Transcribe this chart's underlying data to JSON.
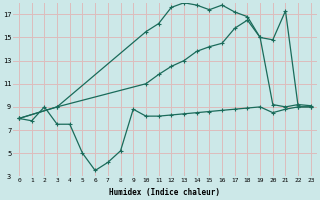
{
  "xlabel": "Humidex (Indice chaleur)",
  "bg_color": "#cce8e8",
  "grid_color": "#ddbcbc",
  "line_color": "#1a6b5a",
  "xlim": [
    -0.5,
    23.5
  ],
  "ylim": [
    3,
    18
  ],
  "yticks": [
    3,
    5,
    7,
    9,
    11,
    13,
    15,
    17
  ],
  "xticks": [
    0,
    1,
    2,
    3,
    4,
    5,
    6,
    7,
    8,
    9,
    10,
    11,
    12,
    13,
    14,
    15,
    16,
    17,
    18,
    19,
    20,
    21,
    22,
    23
  ],
  "line1_x": [
    0,
    1,
    2,
    3,
    4,
    5,
    6,
    7,
    8,
    9,
    10,
    11,
    12,
    13,
    14,
    15,
    16,
    17,
    18,
    19,
    20,
    21,
    22,
    23
  ],
  "line1_y": [
    8.0,
    7.8,
    9.0,
    7.5,
    7.5,
    5.0,
    3.5,
    4.2,
    5.2,
    8.8,
    8.2,
    8.2,
    8.3,
    8.4,
    8.5,
    8.6,
    8.7,
    8.8,
    8.9,
    9.0,
    8.5,
    8.8,
    9.0,
    9.0
  ],
  "line2_x": [
    0,
    3,
    10,
    11,
    12,
    13,
    14,
    15,
    16,
    17,
    18,
    19,
    20,
    21,
    22,
    23
  ],
  "line2_y": [
    8.0,
    9.0,
    15.5,
    16.2,
    17.6,
    18.0,
    17.8,
    17.4,
    17.8,
    17.2,
    16.8,
    15.0,
    9.2,
    9.0,
    9.2,
    9.1
  ],
  "line3_x": [
    0,
    3,
    10,
    11,
    12,
    13,
    14,
    15,
    16,
    17,
    18,
    19,
    20,
    21,
    22,
    23
  ],
  "line3_y": [
    8.0,
    9.0,
    11.0,
    11.8,
    12.5,
    13.0,
    13.8,
    14.2,
    14.5,
    15.8,
    16.5,
    15.0,
    14.8,
    17.3,
    9.0,
    9.0
  ]
}
